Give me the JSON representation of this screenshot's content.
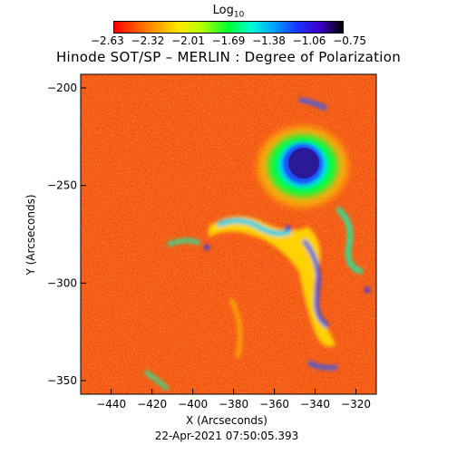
{
  "colorbar": {
    "title": "Log",
    "title_subscript": "10",
    "tick_labels": [
      "−2.63",
      "−2.32",
      "−2.01",
      "−1.69",
      "−1.38",
      "−1.06",
      "−0.75"
    ],
    "range": [
      -2.63,
      -0.75
    ]
  },
  "title": "Hinode SOT/SP – MERLIN : Degree of Polarization",
  "axes": {
    "xlabel": "X (Arcseconds)",
    "ylabel": "Y (Arcseconds)",
    "x_ticks": [
      "−440",
      "−420",
      "−400",
      "−380",
      "−360",
      "−340",
      "−320"
    ],
    "y_ticks": [
      "−200",
      "−250",
      "−300",
      "−350"
    ],
    "x_range": [
      -455,
      -310
    ],
    "y_range": [
      -357,
      -193
    ]
  },
  "timestamp": "22-Apr-2021 07:50:05.393",
  "colors": {
    "background_field": "#f24a1e",
    "sunspot_core": "#2a1a9a"
  }
}
